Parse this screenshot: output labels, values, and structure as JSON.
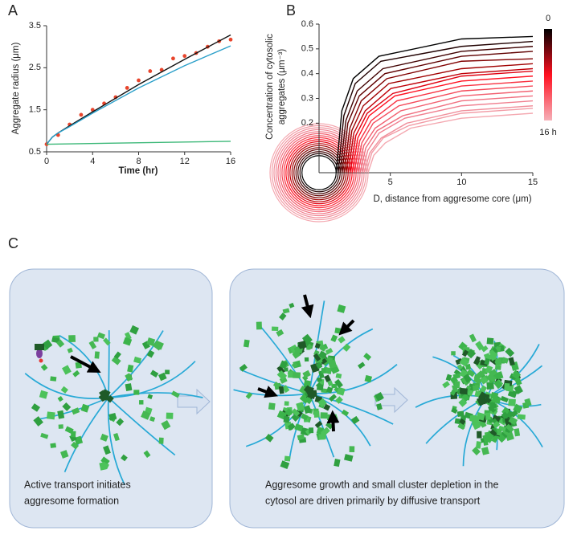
{
  "panel_labels": [
    "A",
    "B",
    "C"
  ],
  "chart_data": [
    {
      "type": "line",
      "x_label": "Time (hr)",
      "y_label": "Aggregate radius (μm)",
      "xlim": [
        0,
        16
      ],
      "xticks": [
        0,
        4,
        8,
        12,
        16
      ],
      "ylim": [
        0.5,
        3.5
      ],
      "yticks": [
        0.5,
        1.5,
        2.5,
        3.5
      ],
      "grid": false,
      "series": [
        {
          "mode": "markers",
          "color": "#e8452c",
          "x": [
            0,
            1,
            2,
            3,
            4,
            5,
            6,
            7,
            8,
            9,
            10,
            11,
            12,
            13,
            14,
            15,
            16
          ],
          "values": [
            0.68,
            0.9,
            1.15,
            1.38,
            1.5,
            1.65,
            1.8,
            2.02,
            2.2,
            2.42,
            2.45,
            2.72,
            2.78,
            2.85,
            3.0,
            3.13,
            3.17
          ]
        },
        {
          "mode": "line",
          "color": "#111111",
          "x": [
            0,
            0.5,
            1,
            2,
            4,
            8,
            12,
            16
          ],
          "values": [
            0.68,
            0.85,
            0.95,
            1.12,
            1.45,
            2.1,
            2.7,
            3.28
          ]
        },
        {
          "mode": "line",
          "color": "#2a9fc9",
          "x": [
            0,
            0.5,
            1,
            2,
            4,
            8,
            12,
            16
          ],
          "values": [
            0.68,
            0.85,
            0.95,
            1.1,
            1.42,
            2.02,
            2.55,
            3.02
          ]
        },
        {
          "mode": "line",
          "color": "#3cb878",
          "x": [
            0,
            16
          ],
          "values": [
            0.68,
            0.75
          ]
        }
      ]
    },
    {
      "type": "line",
      "x_label": "D, distance from aggresome core (μm)",
      "y_label": [
        "Concentration of cytosolic",
        "aggregates (μm⁻³)"
      ],
      "xlim": [
        0,
        15
      ],
      "xticks": [
        5,
        10,
        15
      ],
      "ylim": [
        0,
        0.6
      ],
      "yticks": [
        0.2,
        0.3,
        0.4,
        0.5,
        0.6
      ],
      "grid": false,
      "circles": true,
      "clim": [
        0,
        16
      ],
      "cticks": [
        0,
        {
          "value": 16,
          "label": "16 h"
        }
      ],
      "series": [
        {
          "color": "#000000",
          "x": [
            1.2,
            1.6,
            2.4,
            4.2,
            10,
            15
          ],
          "values": [
            0,
            0.25,
            0.38,
            0.47,
            0.54,
            0.55
          ]
        },
        {
          "color": "#200000",
          "x": [
            1.34,
            1.74,
            2.54,
            4.34,
            10,
            15
          ],
          "values": [
            0,
            0.23,
            0.36,
            0.45,
            0.51,
            0.53
          ]
        },
        {
          "color": "#400000",
          "x": [
            1.48,
            1.88,
            2.68,
            4.48,
            10,
            15
          ],
          "values": [
            0,
            0.21,
            0.33,
            0.42,
            0.49,
            0.51
          ]
        },
        {
          "color": "#600000",
          "x": [
            1.62,
            2.02,
            2.82,
            4.62,
            10,
            15
          ],
          "values": [
            0,
            0.2,
            0.31,
            0.4,
            0.47,
            0.49
          ]
        },
        {
          "color": "#800000",
          "x": [
            1.76,
            2.16,
            2.96,
            4.76,
            10,
            15
          ],
          "values": [
            0,
            0.18,
            0.29,
            0.38,
            0.45,
            0.46
          ]
        },
        {
          "color": "#a00000",
          "x": [
            1.9,
            2.3,
            3.1,
            4.9,
            10,
            15
          ],
          "values": [
            0,
            0.17,
            0.27,
            0.36,
            0.42,
            0.44
          ]
        },
        {
          "color": "#c00008",
          "x": [
            2.04,
            2.44,
            3.24,
            5.04,
            10,
            15
          ],
          "values": [
            0,
            0.16,
            0.25,
            0.34,
            0.4,
            0.42
          ]
        },
        {
          "color": "#e00010",
          "x": [
            2.18,
            2.58,
            3.38,
            5.18,
            10,
            15
          ],
          "values": [
            0,
            0.15,
            0.24,
            0.32,
            0.39,
            0.41
          ]
        },
        {
          "color": "#ff1020",
          "x": [
            2.32,
            2.72,
            3.52,
            5.32,
            10,
            15
          ],
          "values": [
            0,
            0.14,
            0.23,
            0.31,
            0.37,
            0.39
          ]
        },
        {
          "color": "#f83040",
          "x": [
            2.46,
            2.86,
            3.66,
            5.46,
            10,
            15
          ],
          "values": [
            0,
            0.13,
            0.21,
            0.29,
            0.35,
            0.37
          ]
        },
        {
          "color": "#f44a5a",
          "x": [
            2.6,
            3.0,
            3.8,
            5.6,
            10,
            15
          ],
          "values": [
            0,
            0.12,
            0.2,
            0.27,
            0.33,
            0.35
          ]
        },
        {
          "color": "#f26070",
          "x": [
            2.74,
            3.14,
            3.94,
            5.74,
            10,
            15
          ],
          "values": [
            0,
            0.11,
            0.18,
            0.25,
            0.31,
            0.33
          ]
        },
        {
          "color": "#f07080",
          "x": [
            2.88,
            3.28,
            4.08,
            5.88,
            10,
            15
          ],
          "values": [
            0,
            0.1,
            0.17,
            0.23,
            0.29,
            0.31
          ]
        },
        {
          "color": "#f08090",
          "x": [
            3.02,
            3.42,
            4.22,
            6.02,
            10,
            15
          ],
          "values": [
            0,
            0.09,
            0.16,
            0.22,
            0.27,
            0.29
          ]
        },
        {
          "color": "#f0909c",
          "x": [
            3.16,
            3.56,
            4.36,
            6.16,
            10,
            15
          ],
          "values": [
            0,
            0.08,
            0.14,
            0.2,
            0.25,
            0.27
          ]
        },
        {
          "color": "#f29ca6",
          "x": [
            3.3,
            3.7,
            4.5,
            6.3,
            10,
            15
          ],
          "values": [
            0,
            0.08,
            0.14,
            0.19,
            0.24,
            0.26
          ]
        },
        {
          "color": "#f4a8b0",
          "x": [
            3.44,
            3.84,
            4.64,
            6.44,
            10,
            15
          ],
          "values": [
            0,
            0.07,
            0.12,
            0.18,
            0.22,
            0.24
          ]
        }
      ]
    }
  ],
  "diagram": {
    "captions": [
      [
        "Active transport initiates",
        "aggresome formation"
      ],
      [
        "Aggresome growth and small cluster depletion in the",
        "cytosol are driven primarily by diffusive transport"
      ]
    ]
  }
}
